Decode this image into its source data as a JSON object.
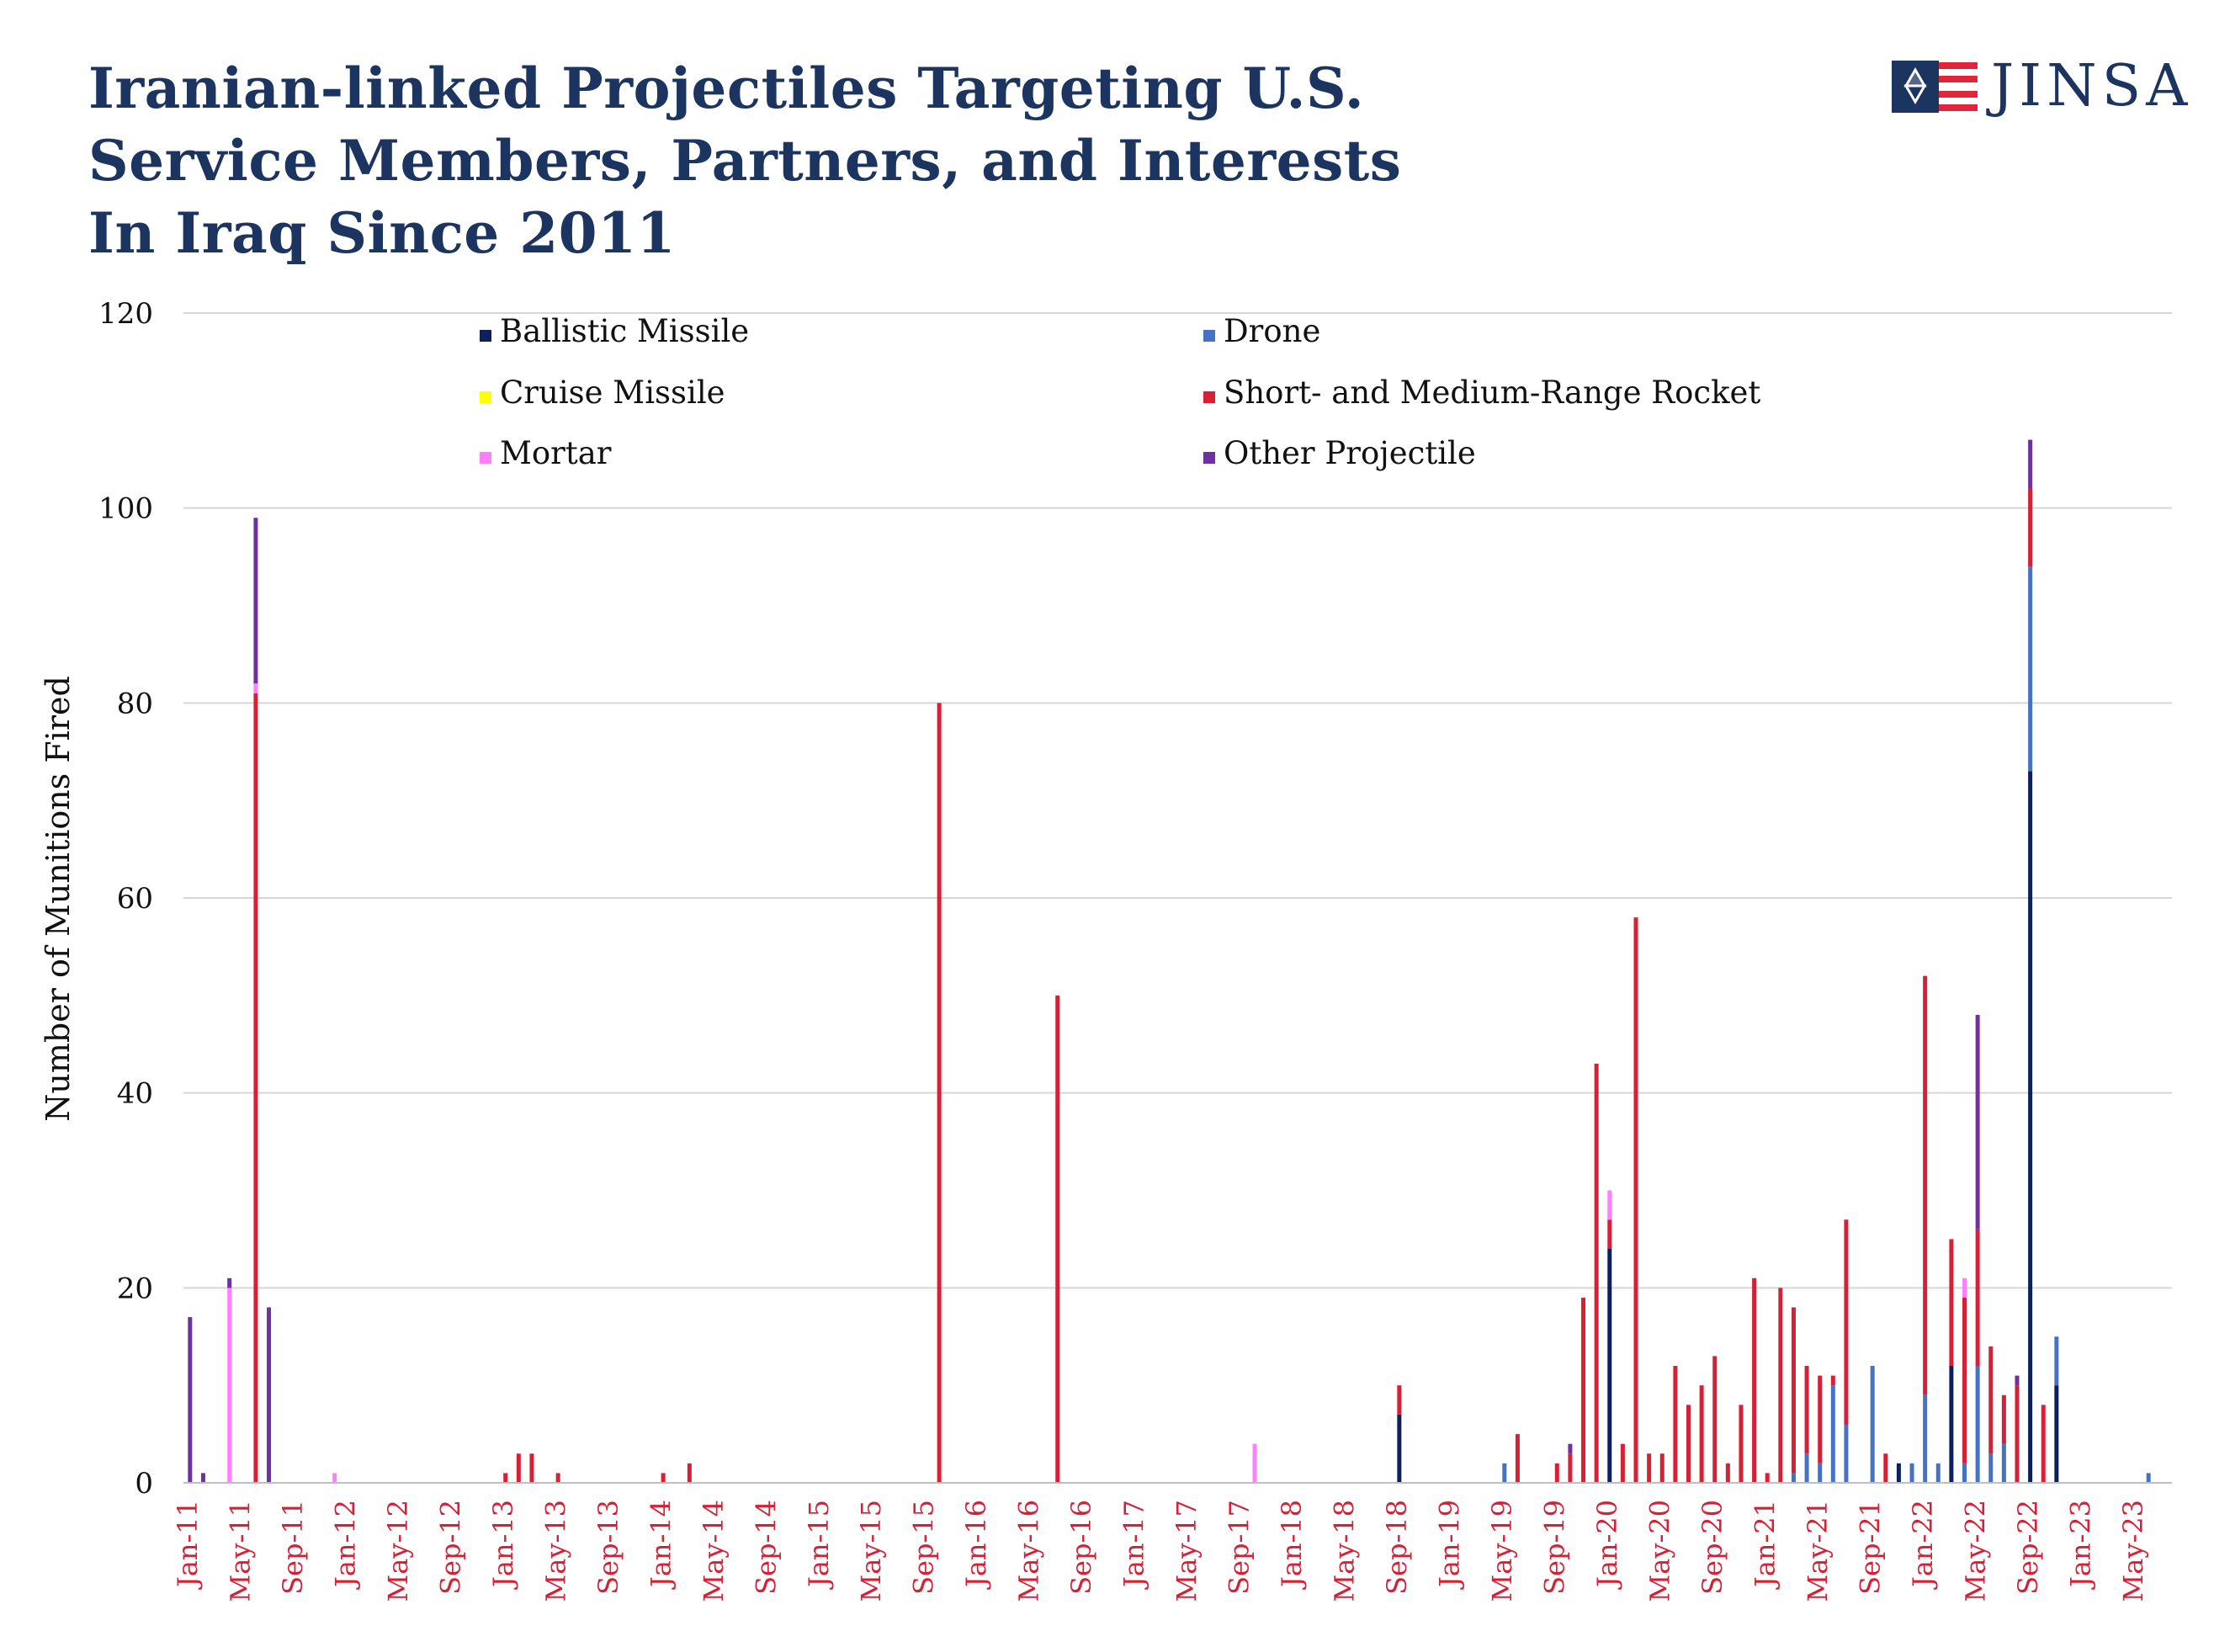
{
  "page": {
    "title_lines": [
      "Iranian-linked Projectiles Targeting U.S.",
      "Service Members, Partners, and Interests",
      "In Iraq Since 2011"
    ],
    "logo_text": "JINSA"
  },
  "colors": {
    "title": "#1c3460",
    "tick_label": "#d62035",
    "axis_text": "#111111",
    "grid": "#d6d6d6",
    "logo_blue": "#1c3460",
    "logo_red": "#e0263b"
  },
  "chart_data": {
    "type": "bar",
    "stacked": true,
    "title": "Iranian-linked Projectiles Targeting U.S. Service Members, Partners, and Interests In Iraq Since 2011",
    "xlabel": "",
    "ylabel": "Number of Munitions Fired",
    "ylim": [
      0,
      120
    ],
    "yticks": [
      0,
      20,
      40,
      60,
      80,
      100,
      120
    ],
    "grid": "horizontal",
    "legend_position": "top",
    "x_range": [
      "2011-01",
      "2023-06"
    ],
    "x_tick_labels": [
      "Jan-11",
      "May-11",
      "Sep-11",
      "Jan-12",
      "May-12",
      "Sep-12",
      "Jan-13",
      "May-13",
      "Sep-13",
      "Jan-14",
      "May-14",
      "Sep-14",
      "Jan-15",
      "May-15",
      "Sep-15",
      "Jan-16",
      "May-16",
      "Sep-16",
      "Jan-17",
      "May-17",
      "Sep-17",
      "Jan-18",
      "May-18",
      "Sep-18",
      "Jan-19",
      "May-19",
      "Sep-19",
      "Jan-20",
      "May-20",
      "Sep-20",
      "Jan-21",
      "May-21",
      "Sep-21",
      "Jan-22",
      "May-22",
      "Sep-22",
      "Jan-23",
      "May-23"
    ],
    "series": [
      {
        "name": "Ballistic Missile",
        "color": "#0d1f5c"
      },
      {
        "name": "Drone",
        "color": "#4472c4"
      },
      {
        "name": "Cruise Missile",
        "color": "#ffff00"
      },
      {
        "name": "Short- and Medium-Range Rocket",
        "color": "#d62035"
      },
      {
        "name": "Mortar",
        "color": "#ff80ff"
      },
      {
        "name": "Other Projectile",
        "color": "#7030a0"
      }
    ],
    "data": [
      {
        "x": "2011-01",
        "values": [
          0,
          0,
          0,
          0,
          0,
          17
        ]
      },
      {
        "x": "2011-02",
        "values": [
          0,
          0,
          0,
          0,
          0,
          1
        ]
      },
      {
        "x": "2011-04",
        "values": [
          0,
          0,
          0,
          0,
          20,
          1
        ]
      },
      {
        "x": "2011-06",
        "values": [
          0,
          0,
          0,
          81,
          1,
          17
        ]
      },
      {
        "x": "2011-07",
        "values": [
          0,
          0,
          0,
          0,
          0,
          18
        ]
      },
      {
        "x": "2011-12",
        "values": [
          0,
          0,
          0,
          0,
          1,
          0
        ]
      },
      {
        "x": "2013-01",
        "values": [
          0,
          0,
          0,
          1,
          0,
          0
        ]
      },
      {
        "x": "2013-02",
        "values": [
          0,
          0,
          0,
          3,
          0,
          0
        ]
      },
      {
        "x": "2013-03",
        "values": [
          0,
          0,
          0,
          3,
          0,
          0
        ]
      },
      {
        "x": "2013-05",
        "values": [
          0,
          0,
          0,
          1,
          0,
          0
        ]
      },
      {
        "x": "2014-01",
        "values": [
          0,
          0,
          0,
          1,
          0,
          0
        ]
      },
      {
        "x": "2014-03",
        "values": [
          0,
          0,
          0,
          2,
          0,
          0
        ]
      },
      {
        "x": "2015-10",
        "values": [
          0,
          0,
          0,
          80,
          0,
          0
        ]
      },
      {
        "x": "2016-07",
        "values": [
          0,
          0,
          0,
          50,
          0,
          0
        ]
      },
      {
        "x": "2017-10",
        "values": [
          0,
          0,
          0,
          0,
          4,
          0
        ]
      },
      {
        "x": "2018-09",
        "values": [
          7,
          0,
          0,
          3,
          0,
          0
        ]
      },
      {
        "x": "2019-05",
        "values": [
          0,
          2,
          0,
          0,
          0,
          0
        ]
      },
      {
        "x": "2019-06",
        "values": [
          0,
          0,
          0,
          5,
          0,
          0
        ]
      },
      {
        "x": "2019-09",
        "values": [
          0,
          0,
          0,
          2,
          0,
          0
        ]
      },
      {
        "x": "2019-10",
        "values": [
          0,
          0,
          0,
          3,
          0,
          1
        ]
      },
      {
        "x": "2019-11",
        "values": [
          0,
          0,
          0,
          19,
          0,
          0
        ]
      },
      {
        "x": "2019-12",
        "values": [
          0,
          0,
          0,
          43,
          0,
          0
        ]
      },
      {
        "x": "2020-01",
        "values": [
          24,
          0,
          0,
          3,
          3,
          0
        ]
      },
      {
        "x": "2020-02",
        "values": [
          0,
          0,
          0,
          4,
          0,
          0
        ]
      },
      {
        "x": "2020-03",
        "values": [
          0,
          0,
          0,
          58,
          0,
          0
        ]
      },
      {
        "x": "2020-04",
        "values": [
          0,
          0,
          0,
          3,
          0,
          0
        ]
      },
      {
        "x": "2020-05",
        "values": [
          0,
          0,
          0,
          3,
          0,
          0
        ]
      },
      {
        "x": "2020-06",
        "values": [
          0,
          0,
          0,
          12,
          0,
          0
        ]
      },
      {
        "x": "2020-07",
        "values": [
          0,
          0,
          0,
          8,
          0,
          0
        ]
      },
      {
        "x": "2020-08",
        "values": [
          0,
          0,
          0,
          10,
          0,
          0
        ]
      },
      {
        "x": "2020-09",
        "values": [
          0,
          0,
          0,
          13,
          0,
          0
        ]
      },
      {
        "x": "2020-10",
        "values": [
          0,
          0,
          0,
          2,
          0,
          0
        ]
      },
      {
        "x": "2020-11",
        "values": [
          0,
          0,
          0,
          8,
          0,
          0
        ]
      },
      {
        "x": "2020-12",
        "values": [
          0,
          0,
          0,
          21,
          0,
          0
        ]
      },
      {
        "x": "2021-01",
        "values": [
          0,
          0,
          0,
          1,
          0,
          0
        ]
      },
      {
        "x": "2021-02",
        "values": [
          0,
          0,
          0,
          20,
          0,
          0
        ]
      },
      {
        "x": "2021-03",
        "values": [
          0,
          1,
          0,
          17,
          0,
          0
        ]
      },
      {
        "x": "2021-04",
        "values": [
          0,
          3,
          0,
          9,
          0,
          0
        ]
      },
      {
        "x": "2021-05",
        "values": [
          0,
          2,
          0,
          9,
          0,
          0
        ]
      },
      {
        "x": "2021-06",
        "values": [
          0,
          10,
          0,
          1,
          0,
          0
        ]
      },
      {
        "x": "2021-07",
        "values": [
          0,
          6,
          0,
          21,
          0,
          0
        ]
      },
      {
        "x": "2021-09",
        "values": [
          0,
          12,
          0,
          0,
          0,
          0
        ]
      },
      {
        "x": "2021-10",
        "values": [
          0,
          0,
          0,
          3,
          0,
          0
        ]
      },
      {
        "x": "2021-11",
        "values": [
          2,
          0,
          0,
          0,
          0,
          0
        ]
      },
      {
        "x": "2021-12",
        "values": [
          0,
          2,
          0,
          0,
          0,
          0
        ]
      },
      {
        "x": "2022-01",
        "values": [
          0,
          9,
          0,
          43,
          0,
          0
        ]
      },
      {
        "x": "2022-02",
        "values": [
          0,
          2,
          0,
          0,
          0,
          0
        ]
      },
      {
        "x": "2022-03",
        "values": [
          12,
          0,
          0,
          13,
          0,
          0
        ]
      },
      {
        "x": "2022-04",
        "values": [
          0,
          2,
          0,
          17,
          2,
          0
        ]
      },
      {
        "x": "2022-05",
        "values": [
          0,
          12,
          0,
          14,
          0,
          22
        ]
      },
      {
        "x": "2022-06",
        "values": [
          0,
          3,
          0,
          11,
          0,
          0
        ]
      },
      {
        "x": "2022-07",
        "values": [
          0,
          4,
          0,
          5,
          0,
          0
        ]
      },
      {
        "x": "2022-08",
        "values": [
          0,
          0,
          0,
          10,
          0,
          1
        ]
      },
      {
        "x": "2022-09",
        "values": [
          73,
          21,
          0,
          8,
          0,
          5
        ]
      },
      {
        "x": "2022-10",
        "values": [
          0,
          0,
          0,
          8,
          0,
          0
        ]
      },
      {
        "x": "2022-11",
        "values": [
          10,
          5,
          0,
          0,
          0,
          0
        ]
      },
      {
        "x": "2023-06",
        "values": [
          0,
          1,
          0,
          0,
          0,
          0
        ]
      }
    ]
  }
}
